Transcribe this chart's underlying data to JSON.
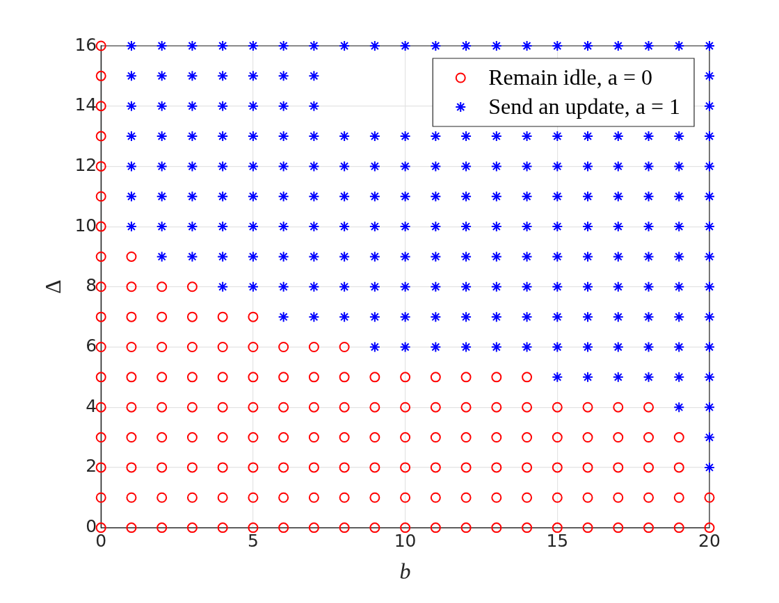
{
  "chart_data": {
    "type": "scatter",
    "xlabel": "b",
    "ylabel": "Δ",
    "xlim": [
      0,
      20
    ],
    "xticks": [
      0,
      5,
      10,
      15,
      20
    ],
    "ylim": [
      0,
      16
    ],
    "yticks": [
      0,
      2,
      4,
      6,
      8,
      10,
      12,
      14,
      16
    ],
    "grid": true,
    "legend": "top right",
    "series": [
      {
        "name": "Remain idle, a = 0",
        "color": "#ff0000",
        "marker": "circle",
        "x": [
          0,
          0,
          0,
          0,
          0,
          0,
          0,
          0,
          0,
          0,
          0,
          0,
          0,
          0,
          0,
          0,
          0,
          1,
          1,
          1,
          1,
          1,
          1,
          1,
          1,
          1,
          1,
          2,
          2,
          2,
          2,
          2,
          2,
          2,
          2,
          2,
          3,
          3,
          3,
          3,
          3,
          3,
          3,
          3,
          3,
          4,
          4,
          4,
          4,
          4,
          4,
          4,
          4,
          5,
          5,
          5,
          5,
          5,
          5,
          5,
          5,
          6,
          6,
          6,
          6,
          6,
          6,
          6,
          7,
          7,
          7,
          7,
          7,
          7,
          7,
          8,
          8,
          8,
          8,
          8,
          8,
          8,
          9,
          9,
          9,
          9,
          9,
          9,
          10,
          10,
          10,
          10,
          10,
          10,
          11,
          11,
          11,
          11,
          11,
          11,
          12,
          12,
          12,
          12,
          12,
          12,
          13,
          13,
          13,
          13,
          13,
          13,
          14,
          14,
          14,
          14,
          14,
          14,
          15,
          15,
          15,
          15,
          15,
          16,
          16,
          16,
          16,
          16,
          17,
          17,
          17,
          17,
          17,
          18,
          18,
          18,
          18,
          18,
          19,
          19,
          19,
          19,
          20,
          20
        ],
        "values": [
          0,
          1,
          2,
          3,
          4,
          5,
          6,
          7,
          8,
          9,
          10,
          11,
          12,
          13,
          14,
          15,
          16,
          0,
          1,
          2,
          3,
          4,
          5,
          6,
          7,
          8,
          9,
          0,
          1,
          2,
          3,
          4,
          5,
          6,
          7,
          8,
          0,
          1,
          2,
          3,
          4,
          5,
          6,
          7,
          8,
          0,
          1,
          2,
          3,
          4,
          5,
          6,
          7,
          0,
          1,
          2,
          3,
          4,
          5,
          6,
          7,
          0,
          1,
          2,
          3,
          4,
          5,
          6,
          0,
          1,
          2,
          3,
          4,
          5,
          6,
          0,
          1,
          2,
          3,
          4,
          5,
          6,
          0,
          1,
          2,
          3,
          4,
          5,
          0,
          1,
          2,
          3,
          4,
          5,
          0,
          1,
          2,
          3,
          4,
          5,
          0,
          1,
          2,
          3,
          4,
          5,
          0,
          1,
          2,
          3,
          4,
          5,
          0,
          1,
          2,
          3,
          4,
          5,
          0,
          1,
          2,
          3,
          4,
          0,
          1,
          2,
          3,
          4,
          0,
          1,
          2,
          3,
          4,
          0,
          1,
          2,
          3,
          4,
          0,
          1,
          2,
          3,
          0,
          1
        ]
      },
      {
        "name": "Send an update, a = 1",
        "color": "#0000ff",
        "marker": "cross",
        "x": [
          1,
          1,
          1,
          1,
          1,
          1,
          1,
          2,
          2,
          2,
          2,
          2,
          2,
          2,
          2,
          3,
          3,
          3,
          3,
          3,
          3,
          3,
          3,
          4,
          4,
          4,
          4,
          4,
          4,
          4,
          4,
          4,
          5,
          5,
          5,
          5,
          5,
          5,
          5,
          5,
          5,
          6,
          6,
          6,
          6,
          6,
          6,
          6,
          6,
          6,
          6,
          7,
          7,
          7,
          7,
          7,
          7,
          7,
          7,
          7,
          7,
          8,
          8,
          8,
          8,
          8,
          8,
          8,
          8,
          9,
          9,
          9,
          9,
          9,
          9,
          9,
          9,
          9,
          10,
          10,
          10,
          10,
          10,
          10,
          10,
          10,
          10,
          11,
          11,
          11,
          11,
          11,
          11,
          11,
          11,
          11,
          12,
          12,
          12,
          12,
          12,
          12,
          12,
          12,
          12,
          13,
          13,
          13,
          13,
          13,
          13,
          13,
          13,
          13,
          14,
          14,
          14,
          14,
          14,
          14,
          14,
          14,
          14,
          15,
          15,
          15,
          15,
          15,
          15,
          15,
          15,
          15,
          15,
          16,
          16,
          16,
          16,
          16,
          16,
          16,
          16,
          16,
          16,
          17,
          17,
          17,
          17,
          17,
          17,
          17,
          17,
          17,
          17,
          18,
          18,
          18,
          18,
          18,
          18,
          18,
          18,
          18,
          18,
          19,
          19,
          19,
          19,
          19,
          19,
          19,
          19,
          19,
          19,
          19,
          20,
          20,
          20,
          20,
          20,
          20,
          20,
          20,
          20,
          20,
          20,
          20,
          20,
          20,
          20
        ],
        "values": [
          10,
          11,
          12,
          13,
          14,
          15,
          16,
          9,
          10,
          11,
          12,
          13,
          14,
          15,
          16,
          9,
          10,
          11,
          12,
          13,
          14,
          15,
          16,
          8,
          9,
          10,
          11,
          12,
          13,
          14,
          15,
          16,
          8,
          9,
          10,
          11,
          12,
          13,
          14,
          15,
          16,
          7,
          8,
          9,
          10,
          11,
          12,
          13,
          14,
          15,
          16,
          7,
          8,
          9,
          10,
          11,
          12,
          13,
          14,
          15,
          16,
          7,
          8,
          9,
          10,
          11,
          12,
          13,
          16,
          6,
          7,
          8,
          9,
          10,
          11,
          12,
          13,
          16,
          6,
          7,
          8,
          9,
          10,
          11,
          12,
          13,
          16,
          6,
          7,
          8,
          9,
          10,
          11,
          12,
          13,
          16,
          6,
          7,
          8,
          9,
          10,
          11,
          12,
          13,
          16,
          6,
          7,
          8,
          9,
          10,
          11,
          12,
          13,
          16,
          6,
          7,
          8,
          9,
          10,
          11,
          12,
          13,
          16,
          5,
          6,
          7,
          8,
          9,
          10,
          11,
          12,
          13,
          16,
          5,
          6,
          7,
          8,
          9,
          10,
          11,
          12,
          13,
          16,
          5,
          6,
          7,
          8,
          9,
          10,
          11,
          12,
          13,
          16,
          5,
          6,
          7,
          8,
          9,
          10,
          11,
          12,
          13,
          16,
          4,
          5,
          6,
          7,
          8,
          9,
          10,
          11,
          12,
          13,
          16,
          2,
          3,
          4,
          5,
          6,
          7,
          8,
          9,
          10,
          11,
          12,
          13,
          14,
          15,
          16
        ]
      }
    ]
  }
}
